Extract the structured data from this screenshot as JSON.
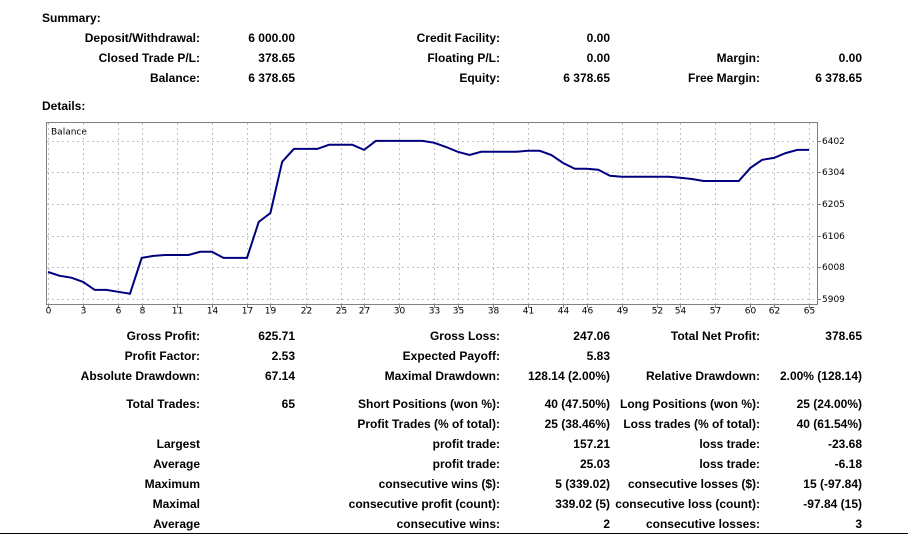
{
  "summary": {
    "title": "Summary:",
    "rows": [
      [
        [
          "Deposit/Withdrawal:",
          "6 000.00"
        ],
        [
          "Credit Facility:",
          "0.00"
        ],
        null
      ],
      [
        [
          "Closed Trade P/L:",
          "378.65"
        ],
        [
          "Floating P/L:",
          "0.00"
        ],
        [
          "Margin:",
          "0.00"
        ]
      ],
      [
        [
          "Balance:",
          "6 378.65"
        ],
        [
          "Equity:",
          "6 378.65"
        ],
        [
          "Free Margin:",
          "6 378.65"
        ]
      ]
    ]
  },
  "details": {
    "title": "Details:",
    "rows": [
      [
        [
          "Gross Profit:",
          "625.71"
        ],
        [
          "Gross Loss:",
          "247.06"
        ],
        [
          "Total Net Profit:",
          "378.65"
        ]
      ],
      [
        [
          "Profit Factor:",
          "2.53"
        ],
        [
          "Expected Payoff:",
          "5.83"
        ],
        null
      ],
      [
        [
          "Absolute Drawdown:",
          "67.14"
        ],
        [
          "Maximal Drawdown:",
          "128.14 (2.00%)"
        ],
        [
          "Relative Drawdown:",
          "2.00% (128.14)"
        ]
      ],
      [
        [
          "Total Trades:",
          "65"
        ],
        [
          "Short Positions (won %):",
          "40 (47.50%)"
        ],
        [
          "Long Positions (won %):",
          "25 (24.00%)"
        ]
      ],
      [
        null,
        [
          "Profit Trades (% of total):",
          "25 (38.46%)"
        ],
        [
          "Loss trades (% of total):",
          "40 (61.54%)"
        ]
      ],
      [
        [
          "Largest"
        ],
        [
          "profit trade:",
          "157.21"
        ],
        [
          "loss trade:",
          "-23.68"
        ]
      ],
      [
        [
          "Average"
        ],
        [
          "profit trade:",
          "25.03"
        ],
        [
          "loss trade:",
          "-6.18"
        ]
      ],
      [
        [
          "Maximum"
        ],
        [
          "consecutive wins ($):",
          "5 (339.02)"
        ],
        [
          "consecutive losses ($):",
          "15 (-97.84)"
        ]
      ],
      [
        [
          "Maximal"
        ],
        [
          "consecutive profit (count):",
          "339.02 (5)"
        ],
        [
          "consecutive loss (count):",
          "-97.84 (15)"
        ]
      ],
      [
        [
          "Average"
        ],
        [
          "consecutive wins:",
          "2"
        ],
        [
          "consecutive losses:",
          "3"
        ]
      ]
    ]
  },
  "chart_data": {
    "type": "line",
    "x": [
      0,
      1,
      2,
      3,
      4,
      5,
      6,
      7,
      8,
      9,
      10,
      11,
      12,
      13,
      14,
      15,
      16,
      17,
      18,
      19,
      20,
      21,
      22,
      23,
      24,
      25,
      26,
      27,
      28,
      29,
      30,
      31,
      32,
      33,
      34,
      35,
      36,
      37,
      38,
      39,
      40,
      41,
      42,
      43,
      44,
      45,
      46,
      47,
      48,
      49,
      50,
      51,
      52,
      53,
      54,
      55,
      56,
      57,
      58,
      59,
      60,
      61,
      62,
      63,
      64,
      65
    ],
    "series": [
      {
        "name": "Balance",
        "color": "#00007f",
        "values": [
          5993,
          5981,
          5975,
          5962,
          5937,
          5937,
          5931,
          5925,
          6037,
          6043,
          6046,
          6046,
          6046,
          6056,
          6056,
          6037,
          6037,
          6037,
          6149,
          6177,
          6337,
          6377,
          6377,
          6377,
          6390,
          6390,
          6390,
          6374,
          6402,
          6402,
          6402,
          6402,
          6402,
          6396,
          6383,
          6368,
          6358,
          6368,
          6368,
          6368,
          6368,
          6371,
          6371,
          6358,
          6333,
          6315,
          6315,
          6312,
          6293,
          6290,
          6290,
          6290,
          6290,
          6290,
          6287,
          6283,
          6277,
          6277,
          6277,
          6277,
          6318,
          6343,
          6349,
          6364,
          6374,
          6374
        ]
      }
    ],
    "xlim": [
      0,
      65
    ],
    "xticks": [
      0,
      3,
      6,
      8,
      11,
      14,
      17,
      19,
      22,
      25,
      27,
      30,
      33,
      35,
      38,
      41,
      44,
      46,
      49,
      52,
      54,
      57,
      60,
      62,
      65
    ],
    "ylim": [
      5893,
      6461
    ],
    "yticks": [
      6402,
      6304,
      6205,
      6106,
      6008,
      5909
    ],
    "grid": true
  }
}
